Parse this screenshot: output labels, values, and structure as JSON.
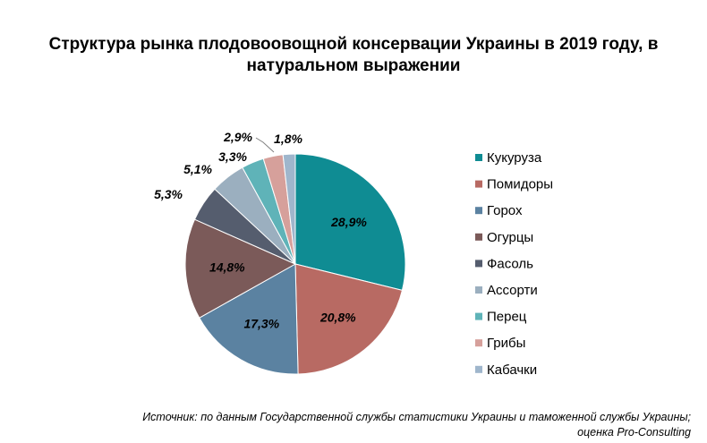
{
  "chart_data": {
    "type": "pie",
    "title_lines": [
      "Структура рынка плодовоовощной консервации Украины в 2019 году, в",
      "натуральном выражении"
    ],
    "categories": [
      "Кукуруза",
      "Помидоры",
      "Горох",
      "Огурцы",
      "Фасоль",
      "Ассорти",
      "Перец",
      "Грибы",
      "Кабачки"
    ],
    "values": [
      28.9,
      20.8,
      17.3,
      14.8,
      5.3,
      5.1,
      3.3,
      2.9,
      1.8
    ],
    "value_labels": [
      "28,9%",
      "20,8%",
      "17,3%",
      "14,8%",
      "5,3%",
      "5,1%",
      "3,3%",
      "2,9%",
      "1,8%"
    ],
    "colors": [
      "#0f8c93",
      "#b86a63",
      "#5b82a1",
      "#7b5a59",
      "#555d6e",
      "#9bafbf",
      "#5fb3b8",
      "#d6a09b",
      "#9fb6cc"
    ],
    "legend": "right"
  },
  "source_lines": [
    "Источник: по данным Государственной службы статистики Украины и таможенной службы Украины;",
    "оценка Pro-Consulting"
  ]
}
